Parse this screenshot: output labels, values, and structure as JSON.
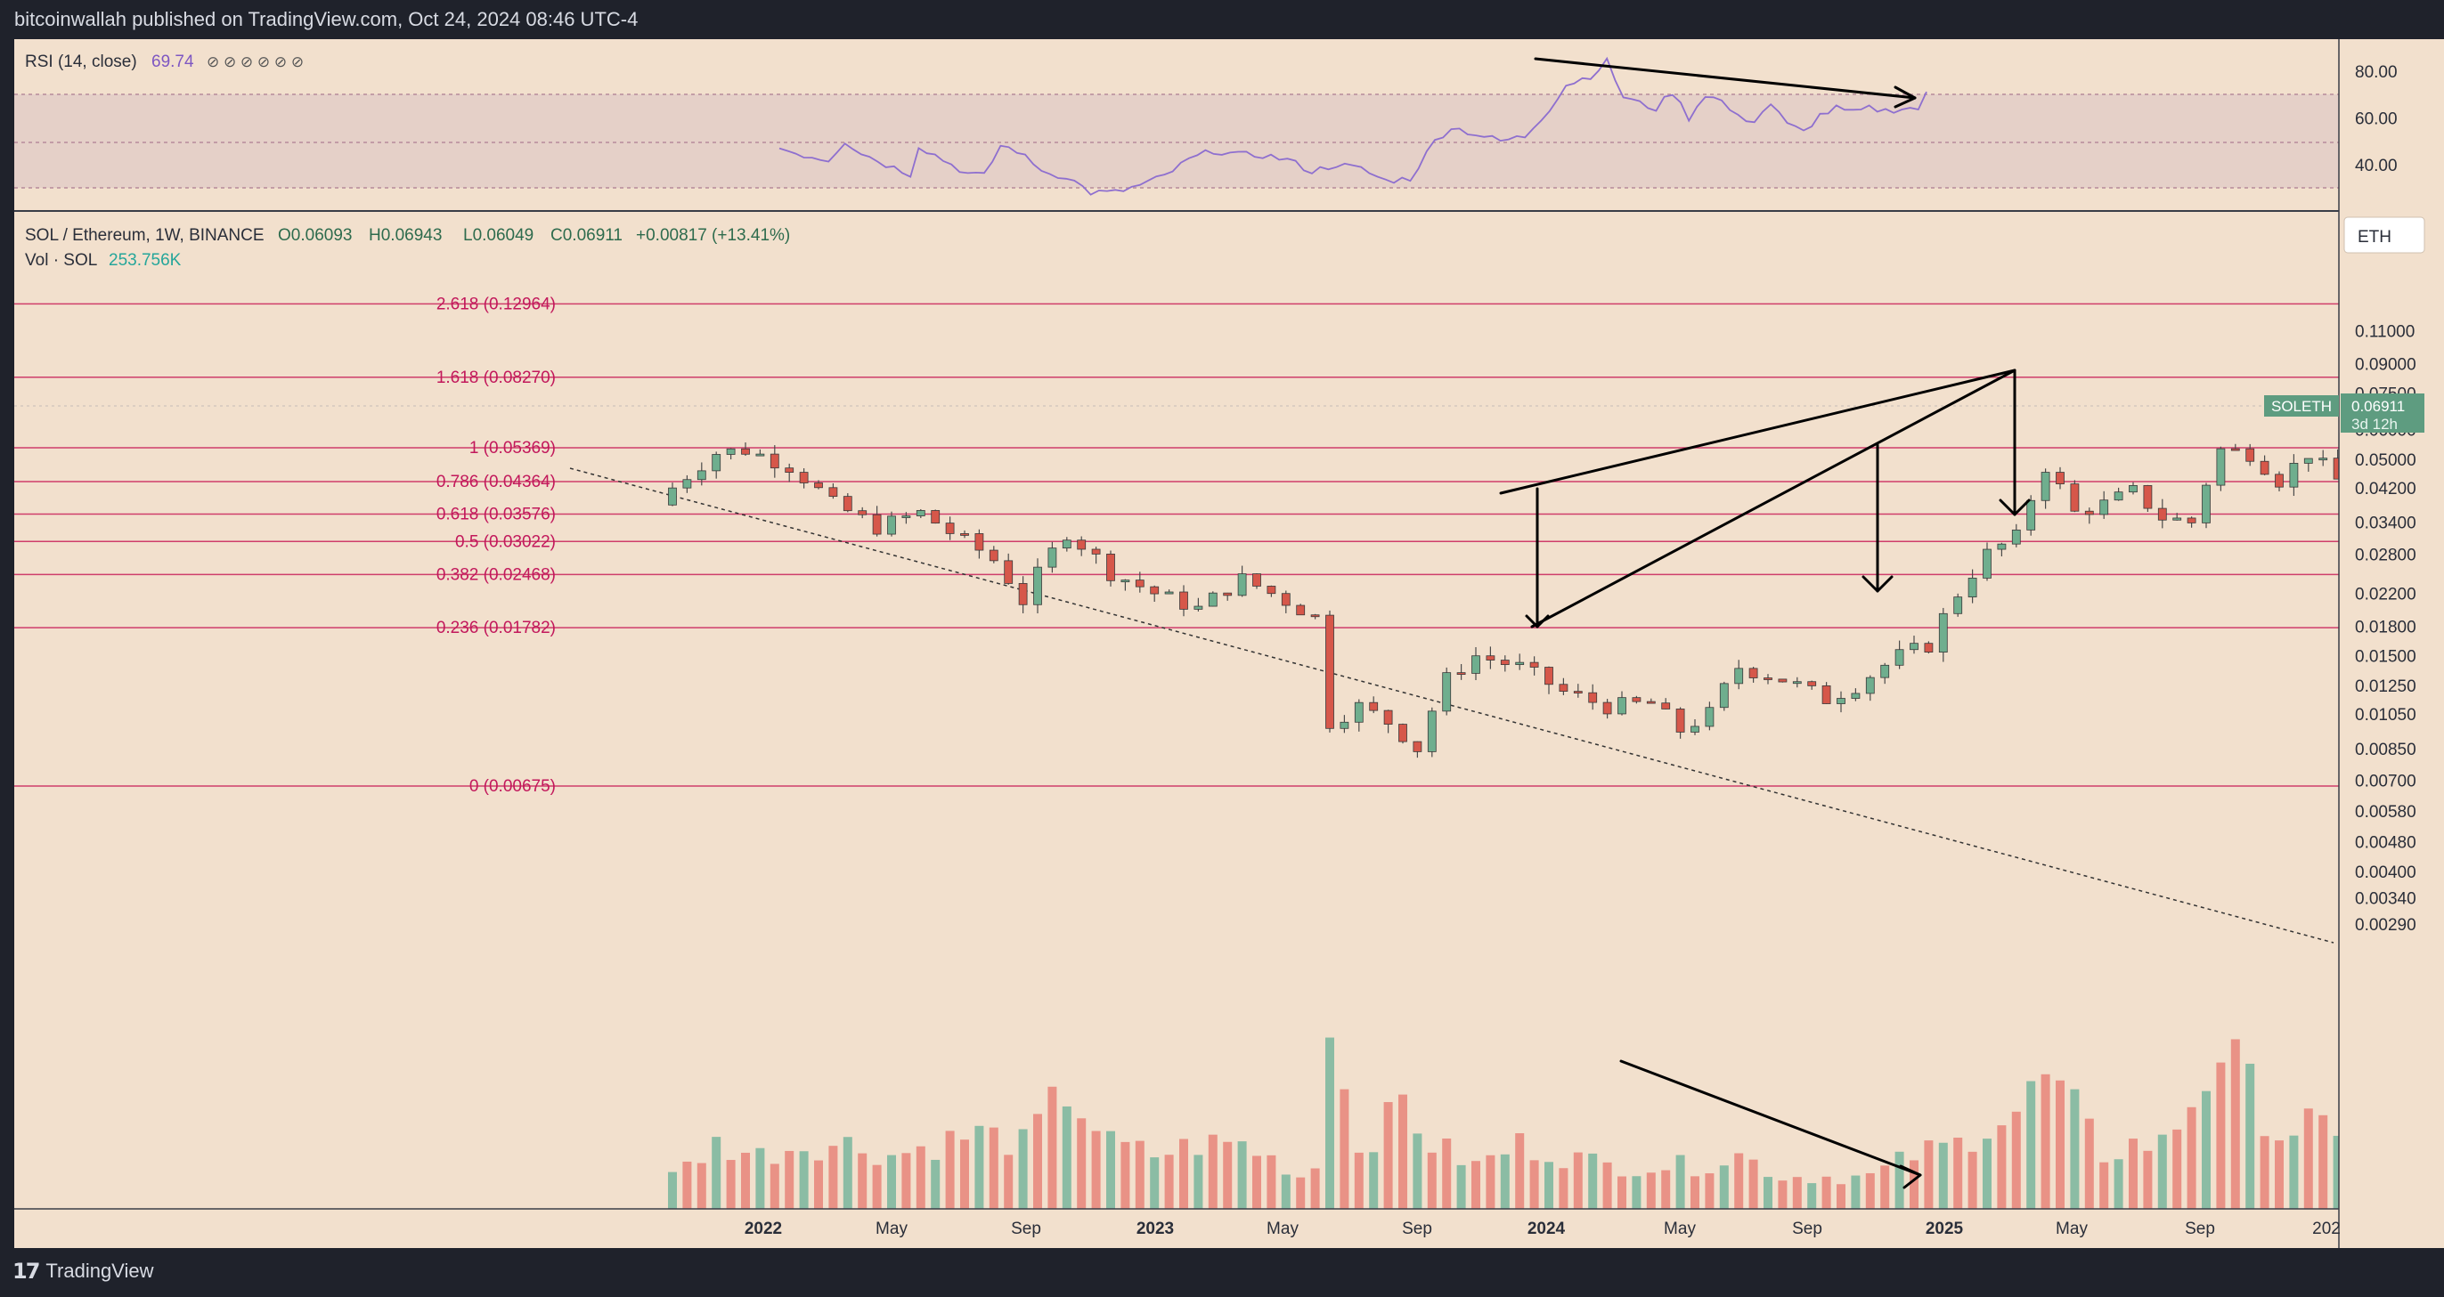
{
  "header": {
    "published": "bitcoinwallah published on TradingView.com, Oct 24, 2024 08:46 UTC-4"
  },
  "footer": {
    "brand": "TradingView",
    "brand_icon": "tradingview-logo-icon"
  },
  "colors": {
    "background": "#f2e0cd",
    "frame": "#1f222b",
    "up": "#6fae8e",
    "down": "#d6574a",
    "fib_line": "#cf3e6b",
    "fib_label": "#c2185b",
    "rsi_line": "#8e6fcf",
    "rsi_band": "#e5d0c8",
    "volume_up": "#7fb8a0",
    "volume_down": "#e88a7e",
    "price_tag": "#5e9c80"
  },
  "rsi_panel": {
    "label": "RSI (14, close)",
    "value": "69.74",
    "icons": "⊘ ⊘ ⊘ ⊘ ⊘ ⊘",
    "axis_ticks": [
      "80.00",
      "60.00",
      "40.00"
    ],
    "band": [
      30,
      70
    ]
  },
  "main_panel": {
    "symbol_line": "SOL / Ethereum, 1W, BINANCE",
    "ohlc": {
      "o": "O0.06093",
      "h": "H0.06943",
      "l": "L0.06049",
      "c": "C0.06911",
      "chg": "+0.00817 (+13.41%)"
    },
    "volume_label": "Vol · SOL",
    "volume_value": "253.756K",
    "currency_button": "ETH",
    "price_tag": {
      "symbol": "SOLETH",
      "price": "0.06911",
      "countdown": "3d 12h"
    },
    "price_axis_ticks": [
      "0.11000",
      "0.09000",
      "0.07500",
      "0.06000",
      "0.05000",
      "0.04200",
      "0.03400",
      "0.02800",
      "0.02200",
      "0.01800",
      "0.01500",
      "0.01250",
      "0.01050",
      "0.00850",
      "0.00700",
      "0.00580",
      "0.00480",
      "0.00400",
      "0.00340",
      "0.00290"
    ],
    "time_axis_labels": [
      "2022",
      "May",
      "Sep",
      "2023",
      "May",
      "Sep",
      "2024",
      "May",
      "Sep",
      "2025",
      "May",
      "Sep",
      "202"
    ]
  },
  "chart_data": {
    "type": "candlestick",
    "title": "SOL / Ethereum, 1W, BINANCE",
    "scale": "log",
    "ylim": [
      0.0029,
      0.135
    ],
    "fib_levels": [
      {
        "label": "2.618 (0.12964)",
        "price": 0.12964
      },
      {
        "label": "1.618 (0.08270)",
        "price": 0.0827
      },
      {
        "label": "1 (0.05369)",
        "price": 0.05369
      },
      {
        "label": "0.786 (0.04364)",
        "price": 0.04364
      },
      {
        "label": "0.618 (0.03576)",
        "price": 0.03576
      },
      {
        "label": "0.5 (0.03022)",
        "price": 0.03022
      },
      {
        "label": "0.382 (0.02468)",
        "price": 0.02468
      },
      {
        "label": "0.236 (0.01782)",
        "price": 0.01782
      },
      {
        "label": "0 (0.00675)",
        "price": 0.00675
      }
    ],
    "close_anchors": [
      [
        0,
        0.042
      ],
      [
        3,
        0.052
      ],
      [
        5,
        0.053
      ],
      [
        8,
        0.048
      ],
      [
        11,
        0.038
      ],
      [
        14,
        0.033
      ],
      [
        17,
        0.036
      ],
      [
        19,
        0.032
      ],
      [
        22,
        0.027
      ],
      [
        24,
        0.021
      ],
      [
        27,
        0.032
      ],
      [
        30,
        0.025
      ],
      [
        33,
        0.022
      ],
      [
        36,
        0.02
      ],
      [
        39,
        0.024
      ],
      [
        42,
        0.021
      ],
      [
        44,
        0.019
      ],
      [
        45,
        0.01
      ],
      [
        47,
        0.011
      ],
      [
        49,
        0.01
      ],
      [
        51,
        0.0085
      ],
      [
        53,
        0.013
      ],
      [
        55,
        0.015
      ],
      [
        58,
        0.014
      ],
      [
        61,
        0.012
      ],
      [
        64,
        0.011
      ],
      [
        67,
        0.0112
      ],
      [
        69,
        0.0095
      ],
      [
        71,
        0.0105
      ],
      [
        73,
        0.014
      ],
      [
        76,
        0.013
      ],
      [
        79,
        0.0115
      ],
      [
        81,
        0.0125
      ],
      [
        84,
        0.015
      ],
      [
        86,
        0.016
      ],
      [
        88,
        0.022
      ],
      [
        90,
        0.028
      ],
      [
        92,
        0.031
      ],
      [
        94,
        0.048
      ],
      [
        96,
        0.036
      ],
      [
        98,
        0.038
      ],
      [
        100,
        0.041
      ],
      [
        102,
        0.035
      ],
      [
        104,
        0.034
      ],
      [
        106,
        0.053
      ],
      [
        108,
        0.052
      ],
      [
        110,
        0.044
      ],
      [
        112,
        0.052
      ],
      [
        114,
        0.044
      ],
      [
        116,
        0.043
      ],
      [
        118,
        0.04
      ],
      [
        120,
        0.047
      ],
      [
        122,
        0.052
      ],
      [
        124,
        0.055
      ],
      [
        126,
        0.054
      ],
      [
        128,
        0.056
      ],
      [
        130,
        0.061
      ],
      [
        131,
        0.069
      ]
    ],
    "volume_anchors": [
      [
        0,
        0.15
      ],
      [
        3,
        0.3
      ],
      [
        6,
        0.25
      ],
      [
        9,
        0.3
      ],
      [
        12,
        0.3
      ],
      [
        15,
        0.25
      ],
      [
        18,
        0.3
      ],
      [
        21,
        0.35
      ],
      [
        24,
        0.3
      ],
      [
        27,
        0.55
      ],
      [
        30,
        0.3
      ],
      [
        33,
        0.25
      ],
      [
        36,
        0.3
      ],
      [
        39,
        0.3
      ],
      [
        42,
        0.2
      ],
      [
        43,
        0.15
      ],
      [
        44,
        0.2
      ],
      [
        45,
        1.0
      ],
      [
        46,
        0.55
      ],
      [
        47,
        0.3
      ],
      [
        49,
        0.4
      ],
      [
        50,
        0.5
      ],
      [
        52,
        0.3
      ],
      [
        55,
        0.2
      ],
      [
        58,
        0.3
      ],
      [
        61,
        0.25
      ],
      [
        64,
        0.2
      ],
      [
        67,
        0.2
      ],
      [
        70,
        0.2
      ],
      [
        73,
        0.25
      ],
      [
        76,
        0.15
      ],
      [
        79,
        0.15
      ],
      [
        82,
        0.15
      ],
      [
        85,
        0.25
      ],
      [
        88,
        0.3
      ],
      [
        90,
        0.4
      ],
      [
        92,
        0.45
      ],
      [
        94,
        0.6
      ],
      [
        96,
        0.45
      ],
      [
        98,
        0.25
      ],
      [
        100,
        0.3
      ],
      [
        102,
        0.3
      ],
      [
        104,
        0.5
      ],
      [
        106,
        0.75
      ],
      [
        108,
        0.55
      ],
      [
        110,
        0.35
      ],
      [
        112,
        0.4
      ],
      [
        114,
        0.3
      ],
      [
        116,
        0.3
      ],
      [
        118,
        0.25
      ],
      [
        120,
        0.45
      ],
      [
        121,
        0.3
      ],
      [
        122,
        0.65
      ],
      [
        124,
        0.3
      ],
      [
        126,
        0.25
      ],
      [
        128,
        0.2
      ],
      [
        131,
        0.2
      ]
    ],
    "rsi_anchors": [
      [
        0,
        47
      ],
      [
        3,
        44
      ],
      [
        6,
        42
      ],
      [
        8,
        50
      ],
      [
        10,
        45
      ],
      [
        13,
        40
      ],
      [
        16,
        36
      ],
      [
        17,
        48
      ],
      [
        19,
        44
      ],
      [
        21,
        40
      ],
      [
        23,
        36
      ],
      [
        25,
        35
      ],
      [
        27,
        48
      ],
      [
        29,
        46
      ],
      [
        31,
        40
      ],
      [
        33,
        36
      ],
      [
        35,
        35
      ],
      [
        38,
        28
      ],
      [
        41,
        28
      ],
      [
        44,
        31
      ],
      [
        47,
        35
      ],
      [
        50,
        42
      ],
      [
        53,
        46
      ],
      [
        56,
        44
      ],
      [
        59,
        44
      ],
      [
        62,
        42
      ],
      [
        65,
        37
      ],
      [
        68,
        40
      ],
      [
        71,
        38
      ],
      [
        74,
        33
      ],
      [
        77,
        34
      ],
      [
        80,
        50
      ],
      [
        82,
        56
      ],
      [
        85,
        53
      ],
      [
        88,
        50
      ],
      [
        91,
        52
      ],
      [
        94,
        64
      ],
      [
        96,
        74
      ],
      [
        99,
        78
      ],
      [
        101,
        84
      ],
      [
        103,
        69
      ],
      [
        105,
        66
      ],
      [
        107,
        64
      ],
      [
        109,
        71
      ],
      [
        111,
        60
      ],
      [
        113,
        70
      ],
      [
        115,
        67
      ],
      [
        117,
        60
      ],
      [
        119,
        59
      ],
      [
        121,
        66
      ],
      [
        123,
        57
      ],
      [
        125,
        54
      ],
      [
        127,
        61
      ],
      [
        129,
        64
      ],
      [
        131,
        62
      ],
      [
        133,
        64
      ],
      [
        135,
        63
      ],
      [
        137,
        64
      ],
      [
        139,
        64
      ],
      [
        140,
        70
      ]
    ]
  }
}
